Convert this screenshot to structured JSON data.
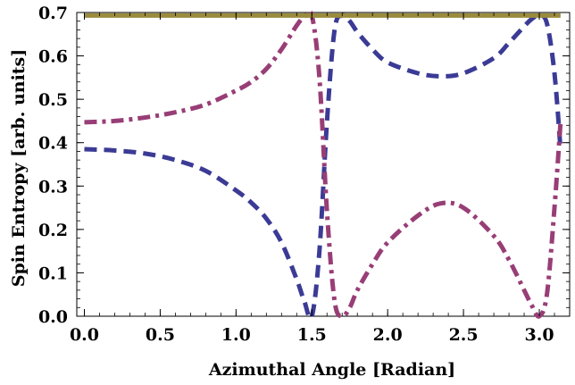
{
  "chart_data": {
    "type": "line",
    "title": "",
    "xlabel": "Azimuthal Angle [Radian]",
    "ylabel": "Spin Entropy  [arb. units]",
    "xlim": [
      -0.05,
      3.2
    ],
    "ylim": [
      0.0,
      0.7
    ],
    "xticks": [
      0.0,
      0.5,
      1.0,
      1.5,
      2.0,
      2.5,
      3.0
    ],
    "xtick_labels": [
      "0.0",
      "0.5",
      "1.0",
      "1.5",
      "2.0",
      "2.5",
      "3.0"
    ],
    "yticks": [
      0.0,
      0.1,
      0.2,
      0.3,
      0.4,
      0.5,
      0.6,
      0.7
    ],
    "ytick_labels": [
      "0.0",
      "0.1",
      "0.2",
      "0.3",
      "0.4",
      "0.5",
      "0.6",
      "0.7"
    ],
    "grid": false,
    "series": [
      {
        "style": "dashed",
        "color": "#3b3b96",
        "x": [
          0.0,
          0.2,
          0.4,
          0.6,
          0.8,
          1.0,
          1.1,
          1.2,
          1.3,
          1.4,
          1.45,
          1.5,
          1.55,
          1.6,
          1.65,
          1.7,
          1.75,
          1.8,
          1.9,
          2.0,
          2.2,
          2.35,
          2.5,
          2.7,
          2.8,
          2.9,
          2.95,
          3.0,
          3.05,
          3.1,
          3.14
        ],
        "y": [
          0.385,
          0.382,
          0.375,
          0.36,
          0.335,
          0.29,
          0.262,
          0.225,
          0.17,
          0.085,
          0.035,
          0.0,
          0.15,
          0.45,
          0.66,
          0.693,
          0.68,
          0.655,
          0.615,
          0.585,
          0.56,
          0.553,
          0.56,
          0.595,
          0.63,
          0.668,
          0.685,
          0.693,
          0.675,
          0.56,
          0.385
        ]
      },
      {
        "style": "dash-dot",
        "color": "#983e76",
        "x": [
          0.0,
          0.2,
          0.4,
          0.6,
          0.8,
          1.0,
          1.1,
          1.2,
          1.3,
          1.4,
          1.45,
          1.5,
          1.55,
          1.6,
          1.65,
          1.7,
          1.75,
          1.8,
          1.9,
          2.0,
          2.2,
          2.35,
          2.5,
          2.7,
          2.8,
          2.9,
          2.95,
          3.0,
          3.05,
          3.1,
          3.14
        ],
        "y": [
          0.447,
          0.45,
          0.458,
          0.47,
          0.488,
          0.52,
          0.54,
          0.57,
          0.615,
          0.67,
          0.69,
          0.693,
          0.55,
          0.24,
          0.035,
          0.0,
          0.02,
          0.06,
          0.12,
          0.17,
          0.232,
          0.26,
          0.25,
          0.185,
          0.13,
          0.06,
          0.025,
          0.0,
          0.05,
          0.25,
          0.447
        ]
      },
      {
        "style": "solid",
        "color": "#9a8c3c",
        "x": [
          0.0,
          3.14
        ],
        "y": [
          0.693,
          0.693
        ]
      }
    ]
  }
}
